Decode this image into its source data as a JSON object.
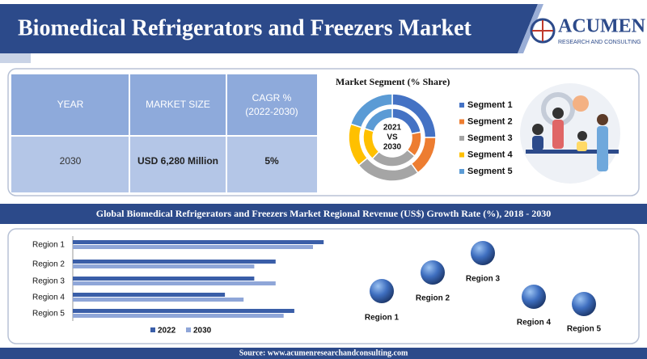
{
  "header": {
    "title": "Biomedical Refrigerators and Freezers Market",
    "logo_name": "ACUMEN",
    "logo_sub": "RESEARCH AND CONSULTING"
  },
  "table": {
    "header": [
      [
        "YEAR"
      ],
      [
        "MARKET SIZE"
      ],
      [
        "CAGR %",
        "(2022-2030)"
      ]
    ],
    "rows": [
      [
        "2030",
        "USD 6,280 Million",
        "5%"
      ]
    ]
  },
  "chart_data": [
    {
      "type": "donut",
      "title": "Market Segment (% Share)",
      "center_label": [
        "2021",
        "VS",
        "2030"
      ],
      "categories": [
        "Segment 1",
        "Segment 2",
        "Segment 3",
        "Segment 4",
        "Segment 5"
      ],
      "colors": [
        "#4472c4",
        "#ed7d31",
        "#a5a5a5",
        "#ffc000",
        "#5b9bd5"
      ],
      "series": [
        {
          "values": [
            22,
            14,
            26,
            18,
            20
          ]
        },
        {
          "values": [
            25,
            15,
            24,
            16,
            20
          ]
        }
      ]
    },
    {
      "type": "hbar",
      "title": "Global Biomedical Refrigerators and Freezers Market Regional Revenue (US$) Growth Rate (%), 2018 - 2030",
      "categories": [
        "Region 1",
        "Region 2",
        "Region 3",
        "Region 4",
        "Region 5"
      ],
      "xlim": [
        0,
        100
      ],
      "series": [
        {
          "name": "2022",
          "color": "#3a5ea8",
          "values": [
            94,
            76,
            68,
            57,
            83
          ]
        },
        {
          "name": "2030",
          "color": "#8fa6d8",
          "values": [
            90,
            68,
            76,
            64,
            79
          ]
        }
      ]
    }
  ],
  "bubbles": [
    "Region 1",
    "Region 2",
    "Region 3",
    "Region 4",
    "Region 5"
  ],
  "source": "Source: www.acumenresearchandconsulting.com"
}
